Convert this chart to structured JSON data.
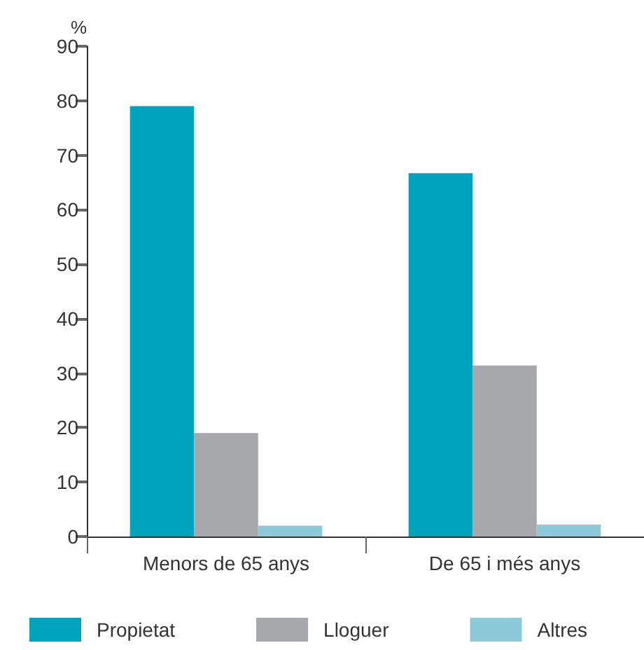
{
  "chart_data": {
    "type": "bar",
    "ylabel": "%",
    "categories": [
      "Menors de 65 anys",
      "De 65 i més anys"
    ],
    "series": [
      {
        "name": "Propietat",
        "color": "#00a3be",
        "values": [
          79.0,
          66.7
        ]
      },
      {
        "name": "Lloguer",
        "color": "#a7a8ac",
        "values": [
          19.0,
          31.4
        ]
      },
      {
        "name": "Altres",
        "color": "#8ccad9",
        "values": [
          2.0,
          2.2
        ]
      }
    ],
    "ylim": [
      0,
      90
    ],
    "yticks": [
      0,
      10,
      20,
      30,
      40,
      50,
      60,
      70,
      80,
      90
    ],
    "grid": false,
    "legend": "bottom"
  }
}
